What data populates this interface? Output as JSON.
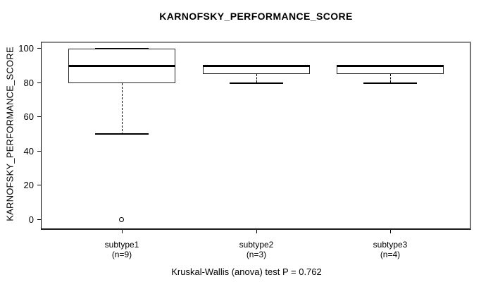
{
  "chart_data": {
    "type": "boxplot",
    "title": "KARNOFSKY_PERFORMANCE_SCORE",
    "ylabel": "KARNOFSKY_PERFORMANCE_SCORE",
    "xlabel": "",
    "annotation": "Kruskal-Wallis (anova) test P = 0.762",
    "p_value": 0.762,
    "ylim": [
      0,
      100
    ],
    "yticks": [
      0,
      20,
      40,
      60,
      80,
      100
    ],
    "grid": false,
    "legend": "none",
    "colors": {
      "line": "#000000",
      "box_fill": "#ffffff",
      "background": "#ffffff"
    },
    "groups": [
      {
        "label": "subtype1",
        "sublabel": "(n=9)",
        "n": 9,
        "whisker_low": 50,
        "q1": 80,
        "median": 90,
        "q3": 100,
        "whisker_high": 100,
        "outliers": [
          0
        ]
      },
      {
        "label": "subtype2",
        "sublabel": "(n=3)",
        "n": 3,
        "whisker_low": 80,
        "q1": 85,
        "median": 90,
        "q3": 90,
        "whisker_high": 90,
        "outliers": []
      },
      {
        "label": "subtype3",
        "sublabel": "(n=4)",
        "n": 4,
        "whisker_low": 80,
        "q1": 85,
        "median": 90,
        "q3": 90,
        "whisker_high": 90,
        "outliers": []
      }
    ]
  }
}
